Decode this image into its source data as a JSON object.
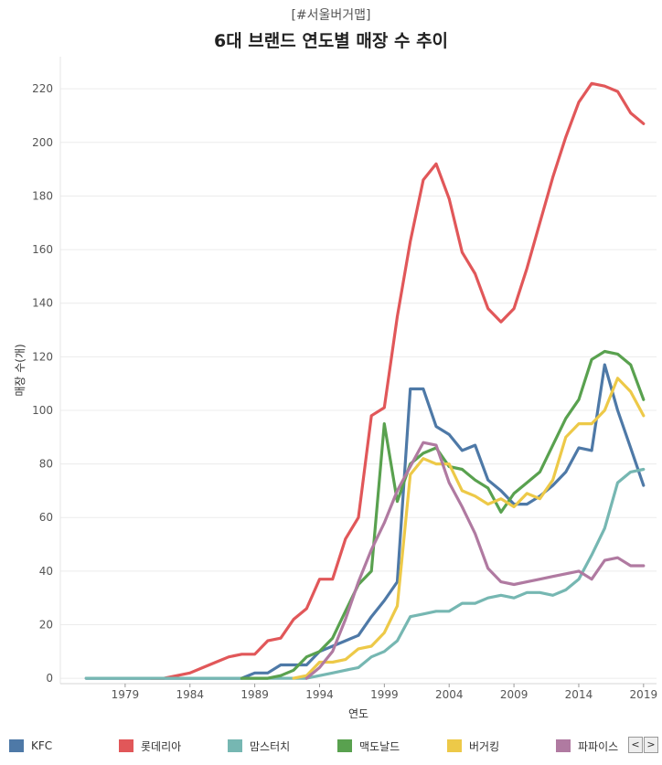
{
  "chart_data": {
    "type": "line",
    "subtitle": "[#서울버거맵]",
    "title": "6대 브랜드 연도별 매장 수 추이",
    "xlabel": "연도",
    "ylabel": "매장 수(개)",
    "xlim": [
      1974,
      2020
    ],
    "ylim": [
      -2,
      232
    ],
    "xticks": [
      1979,
      1984,
      1989,
      1994,
      1999,
      2004,
      2009,
      2014,
      2019
    ],
    "yticks": [
      0,
      20,
      40,
      60,
      80,
      100,
      120,
      140,
      160,
      180,
      200,
      220
    ],
    "series": [
      {
        "name": "KFC",
        "color": "#4e79a7",
        "points": [
          [
            1976,
            0
          ],
          [
            1977,
            0
          ],
          [
            1978,
            0
          ],
          [
            1979,
            0
          ],
          [
            1980,
            0
          ],
          [
            1981,
            0
          ],
          [
            1982,
            0
          ],
          [
            1983,
            0
          ],
          [
            1984,
            0
          ],
          [
            1985,
            0
          ],
          [
            1986,
            0
          ],
          [
            1987,
            0
          ],
          [
            1988,
            0
          ],
          [
            1989,
            2
          ],
          [
            1990,
            2
          ],
          [
            1991,
            5
          ],
          [
            1992,
            5
          ],
          [
            1993,
            5
          ],
          [
            1994,
            10
          ],
          [
            1995,
            12
          ],
          [
            1996,
            14
          ],
          [
            1997,
            16
          ],
          [
            1998,
            23
          ],
          [
            1999,
            29
          ],
          [
            2000,
            36
          ],
          [
            2001,
            108
          ],
          [
            2002,
            108
          ],
          [
            2003,
            94
          ],
          [
            2004,
            91
          ],
          [
            2005,
            85
          ],
          [
            2006,
            87
          ],
          [
            2007,
            74
          ],
          [
            2008,
            70
          ],
          [
            2009,
            65
          ],
          [
            2010,
            65
          ],
          [
            2011,
            68
          ],
          [
            2012,
            72
          ],
          [
            2013,
            77
          ],
          [
            2014,
            86
          ],
          [
            2015,
            85
          ],
          [
            2016,
            117
          ],
          [
            2017,
            100
          ],
          [
            2018,
            86
          ],
          [
            2019,
            72
          ]
        ]
      },
      {
        "name": "롯데리아",
        "color": "#e15759",
        "points": [
          [
            1981,
            0
          ],
          [
            1982,
            0
          ],
          [
            1983,
            1
          ],
          [
            1984,
            2
          ],
          [
            1985,
            4
          ],
          [
            1986,
            6
          ],
          [
            1987,
            8
          ],
          [
            1988,
            9
          ],
          [
            1989,
            9
          ],
          [
            1990,
            14
          ],
          [
            1991,
            15
          ],
          [
            1992,
            22
          ],
          [
            1993,
            26
          ],
          [
            1994,
            37
          ],
          [
            1995,
            37
          ],
          [
            1996,
            52
          ],
          [
            1997,
            60
          ],
          [
            1998,
            98
          ],
          [
            1999,
            101
          ],
          [
            2000,
            135
          ],
          [
            2001,
            163
          ],
          [
            2002,
            186
          ],
          [
            2003,
            192
          ],
          [
            2004,
            179
          ],
          [
            2005,
            159
          ],
          [
            2006,
            151
          ],
          [
            2007,
            138
          ],
          [
            2008,
            133
          ],
          [
            2009,
            138
          ],
          [
            2010,
            153
          ],
          [
            2011,
            170
          ],
          [
            2012,
            187
          ],
          [
            2013,
            202
          ],
          [
            2014,
            215
          ],
          [
            2015,
            222
          ],
          [
            2016,
            221
          ],
          [
            2017,
            219
          ],
          [
            2018,
            211
          ],
          [
            2019,
            207
          ]
        ]
      },
      {
        "name": "맘스터치",
        "color": "#76b7b2",
        "points": [
          [
            1976,
            0
          ],
          [
            1980,
            0
          ],
          [
            1985,
            0
          ],
          [
            1990,
            0
          ],
          [
            1993,
            0
          ],
          [
            1994,
            1
          ],
          [
            1995,
            2
          ],
          [
            1996,
            3
          ],
          [
            1997,
            4
          ],
          [
            1998,
            8
          ],
          [
            1999,
            10
          ],
          [
            2000,
            14
          ],
          [
            2001,
            23
          ],
          [
            2002,
            24
          ],
          [
            2003,
            25
          ],
          [
            2004,
            25
          ],
          [
            2005,
            28
          ],
          [
            2006,
            28
          ],
          [
            2007,
            30
          ],
          [
            2008,
            31
          ],
          [
            2009,
            30
          ],
          [
            2010,
            32
          ],
          [
            2011,
            32
          ],
          [
            2012,
            31
          ],
          [
            2013,
            33
          ],
          [
            2014,
            37
          ],
          [
            2015,
            46
          ],
          [
            2016,
            56
          ],
          [
            2017,
            73
          ],
          [
            2018,
            77
          ],
          [
            2019,
            78
          ]
        ]
      },
      {
        "name": "맥도날드",
        "color": "#59a14f",
        "points": [
          [
            1988,
            0
          ],
          [
            1989,
            0
          ],
          [
            1990,
            0
          ],
          [
            1991,
            1
          ],
          [
            1992,
            3
          ],
          [
            1993,
            8
          ],
          [
            1994,
            10
          ],
          [
            1995,
            15
          ],
          [
            1996,
            25
          ],
          [
            1997,
            35
          ],
          [
            1998,
            40
          ],
          [
            1999,
            95
          ],
          [
            2000,
            66
          ],
          [
            2001,
            80
          ],
          [
            2002,
            84
          ],
          [
            2003,
            86
          ],
          [
            2004,
            79
          ],
          [
            2005,
            78
          ],
          [
            2006,
            74
          ],
          [
            2007,
            71
          ],
          [
            2008,
            62
          ],
          [
            2009,
            69
          ],
          [
            2010,
            73
          ],
          [
            2011,
            77
          ],
          [
            2012,
            87
          ],
          [
            2013,
            97
          ],
          [
            2014,
            104
          ],
          [
            2015,
            119
          ],
          [
            2016,
            122
          ],
          [
            2017,
            121
          ],
          [
            2018,
            117
          ],
          [
            2019,
            104
          ]
        ]
      },
      {
        "name": "버거킹",
        "color": "#edc948",
        "points": [
          [
            1992,
            0
          ],
          [
            1993,
            1
          ],
          [
            1994,
            6
          ],
          [
            1995,
            6
          ],
          [
            1996,
            7
          ],
          [
            1997,
            11
          ],
          [
            1998,
            12
          ],
          [
            1999,
            17
          ],
          [
            2000,
            27
          ],
          [
            2001,
            76
          ],
          [
            2002,
            82
          ],
          [
            2003,
            80
          ],
          [
            2004,
            80
          ],
          [
            2005,
            70
          ],
          [
            2006,
            68
          ],
          [
            2007,
            65
          ],
          [
            2008,
            67
          ],
          [
            2009,
            64
          ],
          [
            2010,
            69
          ],
          [
            2011,
            67
          ],
          [
            2012,
            74
          ],
          [
            2013,
            90
          ],
          [
            2014,
            95
          ],
          [
            2015,
            95
          ],
          [
            2016,
            100
          ],
          [
            2017,
            112
          ],
          [
            2018,
            107
          ],
          [
            2019,
            98
          ]
        ]
      },
      {
        "name": "파파이스",
        "color": "#b07aa1",
        "points": [
          [
            1993,
            0
          ],
          [
            1994,
            4
          ],
          [
            1995,
            10
          ],
          [
            1996,
            22
          ],
          [
            1997,
            36
          ],
          [
            1998,
            48
          ],
          [
            1999,
            58
          ],
          [
            2000,
            70
          ],
          [
            2001,
            79
          ],
          [
            2002,
            88
          ],
          [
            2003,
            87
          ],
          [
            2004,
            73
          ],
          [
            2005,
            64
          ],
          [
            2006,
            54
          ],
          [
            2007,
            41
          ],
          [
            2008,
            36
          ],
          [
            2009,
            35
          ],
          [
            2010,
            36
          ],
          [
            2011,
            37
          ],
          [
            2012,
            38
          ],
          [
            2013,
            39
          ],
          [
            2014,
            40
          ],
          [
            2015,
            37
          ],
          [
            2016,
            44
          ],
          [
            2017,
            45
          ],
          [
            2018,
            42
          ],
          [
            2019,
            42
          ]
        ]
      }
    ]
  },
  "legend": {
    "items": [
      "KFC",
      "롯데리아",
      "맘스터치",
      "맥도날드",
      "버거킹",
      "파파이스"
    ]
  },
  "scroll": {
    "left": "<",
    "right": ">"
  }
}
